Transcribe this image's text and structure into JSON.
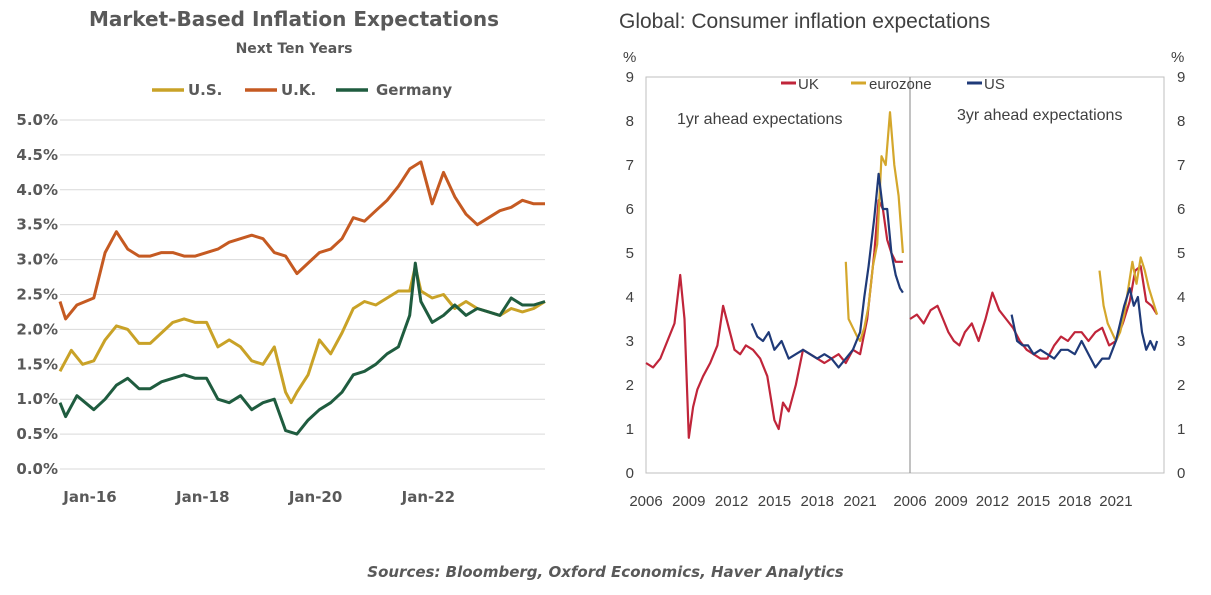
{
  "chart_data": [
    {
      "type": "line",
      "title": "Market-Based  Inflation  Expectations",
      "subtitle": "Next Ten Years",
      "x_tick_labels": [
        "Jan-16",
        "Jan-18",
        "Jan-20",
        "Jan-22"
      ],
      "x_tick_positions": [
        2016.0,
        2018.0,
        2020.0,
        2022.0
      ],
      "xlim": [
        2016.0,
        2024.6
      ],
      "y_tick_labels": [
        "0.0%",
        "0.5%",
        "1.0%",
        "1.5%",
        "2.0%",
        "2.5%",
        "3.0%",
        "3.5%",
        "4.0%",
        "4.5%",
        "5.0%"
      ],
      "ylim": [
        0,
        5
      ],
      "grid": true,
      "legend_position": "top",
      "series": [
        {
          "name": "U.S.",
          "color": "#c9a227",
          "x": [
            2016.0,
            2016.2,
            2016.4,
            2016.6,
            2016.8,
            2017.0,
            2017.2,
            2017.4,
            2017.6,
            2017.8,
            2018.0,
            2018.2,
            2018.4,
            2018.6,
            2018.8,
            2019.0,
            2019.2,
            2019.4,
            2019.6,
            2019.8,
            2020.0,
            2020.1,
            2020.2,
            2020.4,
            2020.6,
            2020.8,
            2021.0,
            2021.2,
            2021.4,
            2021.6,
            2021.8,
            2022.0,
            2022.2,
            2022.3,
            2022.4,
            2022.6,
            2022.8,
            2023.0,
            2023.2,
            2023.4,
            2023.6,
            2023.8,
            2024.0,
            2024.2,
            2024.4,
            2024.6
          ],
          "y": [
            1.4,
            1.7,
            1.5,
            1.55,
            1.85,
            2.05,
            2.0,
            1.8,
            1.8,
            1.95,
            2.1,
            2.15,
            2.1,
            2.1,
            1.75,
            1.85,
            1.75,
            1.55,
            1.5,
            1.75,
            1.1,
            0.95,
            1.1,
            1.35,
            1.85,
            1.65,
            1.95,
            2.3,
            2.4,
            2.35,
            2.45,
            2.55,
            2.55,
            2.9,
            2.55,
            2.45,
            2.5,
            2.3,
            2.4,
            2.3,
            2.25,
            2.2,
            2.3,
            2.25,
            2.3,
            2.4
          ]
        },
        {
          "name": "U.K.",
          "color": "#c55a22",
          "x": [
            2016.0,
            2016.1,
            2016.3,
            2016.6,
            2016.8,
            2017.0,
            2017.2,
            2017.4,
            2017.6,
            2017.8,
            2018.0,
            2018.2,
            2018.4,
            2018.6,
            2018.8,
            2019.0,
            2019.2,
            2019.4,
            2019.6,
            2019.8,
            2020.0,
            2020.2,
            2020.4,
            2020.6,
            2020.8,
            2021.0,
            2021.2,
            2021.4,
            2021.6,
            2021.8,
            2022.0,
            2022.2,
            2022.4,
            2022.6,
            2022.8,
            2023.0,
            2023.2,
            2023.4,
            2023.6,
            2023.8,
            2024.0,
            2024.2,
            2024.4,
            2024.6
          ],
          "y": [
            2.4,
            2.15,
            2.35,
            2.45,
            3.1,
            3.4,
            3.15,
            3.05,
            3.05,
            3.1,
            3.1,
            3.05,
            3.05,
            3.1,
            3.15,
            3.25,
            3.3,
            3.35,
            3.3,
            3.1,
            3.05,
            2.8,
            2.95,
            3.1,
            3.15,
            3.3,
            3.6,
            3.55,
            3.7,
            3.85,
            4.05,
            4.3,
            4.4,
            3.8,
            4.25,
            3.9,
            3.65,
            3.5,
            3.6,
            3.7,
            3.75,
            3.85,
            3.8,
            3.8
          ]
        },
        {
          "name": "Germany",
          "color": "#1f5c3f",
          "x": [
            2016.0,
            2016.1,
            2016.3,
            2016.6,
            2016.8,
            2017.0,
            2017.2,
            2017.4,
            2017.6,
            2017.8,
            2018.0,
            2018.2,
            2018.4,
            2018.6,
            2018.8,
            2019.0,
            2019.2,
            2019.4,
            2019.6,
            2019.8,
            2020.0,
            2020.2,
            2020.4,
            2020.6,
            2020.8,
            2021.0,
            2021.2,
            2021.4,
            2021.6,
            2021.8,
            2022.0,
            2022.2,
            2022.3,
            2022.4,
            2022.6,
            2022.8,
            2023.0,
            2023.2,
            2023.4,
            2023.6,
            2023.8,
            2024.0,
            2024.2,
            2024.4,
            2024.6
          ],
          "y": [
            0.95,
            0.75,
            1.05,
            0.85,
            1.0,
            1.2,
            1.3,
            1.15,
            1.15,
            1.25,
            1.3,
            1.35,
            1.3,
            1.3,
            1.0,
            0.95,
            1.05,
            0.85,
            0.95,
            1.0,
            0.55,
            0.5,
            0.7,
            0.85,
            0.95,
            1.1,
            1.35,
            1.4,
            1.5,
            1.65,
            1.75,
            2.2,
            2.95,
            2.4,
            2.1,
            2.2,
            2.35,
            2.2,
            2.3,
            2.25,
            2.2,
            2.45,
            2.35,
            2.35,
            2.4
          ]
        }
      ]
    },
    {
      "type": "line",
      "title": "Global: Consumer inflation expectations",
      "y_unit_left": "%",
      "y_unit_right": "%",
      "ylim": [
        0,
        9
      ],
      "y_tick_labels": [
        "0",
        "1",
        "2",
        "3",
        "4",
        "5",
        "6",
        "7",
        "8",
        "9"
      ],
      "x_tick_labels": [
        "2006",
        "2009",
        "2012",
        "2015",
        "2018",
        "2021",
        "2006",
        "2009",
        "2012",
        "2015",
        "2018",
        "2021"
      ],
      "legend_position": "top",
      "panels": [
        {
          "annotation": "1yr ahead expectations",
          "xlim": [
            2006,
            2024.5
          ],
          "series": [
            {
              "name": "UK",
              "color": "#c0253a",
              "x": [
                2006,
                2006.5,
                2007,
                2007.5,
                2008,
                2008.4,
                2008.7,
                2009,
                2009.3,
                2009.6,
                2010,
                2010.5,
                2011,
                2011.4,
                2011.8,
                2012.2,
                2012.6,
                2013,
                2013.5,
                2014,
                2014.5,
                2015,
                2015.3,
                2015.6,
                2016,
                2016.5,
                2017,
                2017.5,
                2018,
                2018.5,
                2019,
                2019.5,
                2020,
                2020.5,
                2021,
                2021.5,
                2022,
                2022.3,
                2022.6,
                2022.9,
                2023.2,
                2023.5,
                2024
              ],
              "y": [
                2.5,
                2.4,
                2.6,
                3.0,
                3.4,
                4.5,
                3.5,
                0.8,
                1.5,
                1.9,
                2.2,
                2.5,
                2.9,
                3.8,
                3.3,
                2.8,
                2.7,
                2.9,
                2.8,
                2.6,
                2.2,
                1.2,
                1.0,
                1.6,
                1.4,
                2.0,
                2.8,
                2.7,
                2.6,
                2.5,
                2.6,
                2.7,
                2.5,
                2.8,
                2.7,
                3.5,
                5.0,
                6.2,
                6.0,
                5.3,
                5.0,
                4.8,
                4.8
              ]
            },
            {
              "name": "eurozone",
              "color": "#d4a72c",
              "x": [
                2020.0,
                2020.2,
                2020.5,
                2020.8,
                2021.0,
                2021.3,
                2021.6,
                2021.9,
                2022.2,
                2022.5,
                2022.8,
                2023.1,
                2023.4,
                2023.7,
                2024.0
              ],
              "y": [
                4.8,
                3.5,
                3.3,
                3.1,
                3.0,
                3.3,
                3.8,
                4.7,
                5.2,
                7.2,
                7.0,
                8.2,
                7.0,
                6.3,
                5.0
              ]
            },
            {
              "name": "US",
              "color": "#1f3a78",
              "x": [
                2013.4,
                2013.8,
                2014.2,
                2014.6,
                2015,
                2015.5,
                2016,
                2016.5,
                2017,
                2017.5,
                2018,
                2018.5,
                2019,
                2019.5,
                2020,
                2020.5,
                2021,
                2021.3,
                2021.6,
                2022.0,
                2022.3,
                2022.6,
                2022.9,
                2023.2,
                2023.5,
                2023.8,
                2024.0
              ],
              "y": [
                3.4,
                3.1,
                3.0,
                3.2,
                2.8,
                3.0,
                2.6,
                2.7,
                2.8,
                2.7,
                2.6,
                2.7,
                2.6,
                2.4,
                2.6,
                2.8,
                3.2,
                4.0,
                4.7,
                5.8,
                6.8,
                6.0,
                6.0,
                5.0,
                4.5,
                4.2,
                4.1
              ]
            }
          ]
        },
        {
          "annotation": "3yr ahead expectations",
          "xlim": [
            2006,
            2024.5
          ],
          "series": [
            {
              "name": "UK",
              "color": "#c0253a",
              "x": [
                2006,
                2006.5,
                2007,
                2007.5,
                2008,
                2008.4,
                2008.8,
                2009.2,
                2009.6,
                2010,
                2010.5,
                2011,
                2011.5,
                2012,
                2012.5,
                2013,
                2013.5,
                2014,
                2014.5,
                2015,
                2015.5,
                2016,
                2016.5,
                2017,
                2017.5,
                2018,
                2018.5,
                2019,
                2019.5,
                2020,
                2020.5,
                2021,
                2021.5,
                2022,
                2022.4,
                2022.8,
                2023.2,
                2023.6,
                2024
              ],
              "y": [
                3.5,
                3.6,
                3.4,
                3.7,
                3.8,
                3.5,
                3.2,
                3.0,
                2.9,
                3.2,
                3.4,
                3.0,
                3.5,
                4.1,
                3.7,
                3.5,
                3.3,
                3.0,
                2.8,
                2.7,
                2.6,
                2.6,
                2.9,
                3.1,
                3.0,
                3.2,
                3.2,
                3.0,
                3.2,
                3.3,
                2.9,
                3.0,
                3.4,
                3.9,
                4.6,
                4.7,
                3.9,
                3.8,
                3.6
              ]
            },
            {
              "name": "eurozone",
              "color": "#d4a72c",
              "x": [
                2019.8,
                2020.1,
                2020.4,
                2020.7,
                2021.0,
                2021.3,
                2021.6,
                2021.9,
                2022.2,
                2022.5,
                2022.8,
                2023.1,
                2023.4,
                2023.7,
                2024.0
              ],
              "y": [
                4.6,
                3.8,
                3.4,
                3.2,
                3.0,
                3.2,
                3.6,
                4.2,
                4.8,
                4.3,
                4.9,
                4.6,
                4.2,
                3.9,
                3.6
              ]
            },
            {
              "name": "US",
              "color": "#1f3a78",
              "x": [
                2013.4,
                2013.8,
                2014.2,
                2014.6,
                2015,
                2015.5,
                2016,
                2016.5,
                2017,
                2017.5,
                2018,
                2018.5,
                2019,
                2019.5,
                2020,
                2020.5,
                2021,
                2021.3,
                2021.6,
                2022.0,
                2022.3,
                2022.6,
                2022.9,
                2023.2,
                2023.5,
                2023.8,
                2024.0
              ],
              "y": [
                3.6,
                3.0,
                2.9,
                2.9,
                2.7,
                2.8,
                2.7,
                2.6,
                2.8,
                2.8,
                2.7,
                3.0,
                2.7,
                2.4,
                2.6,
                2.6,
                3.0,
                3.4,
                3.8,
                4.2,
                3.8,
                4.0,
                3.2,
                2.8,
                3.0,
                2.8,
                3.0
              ]
            }
          ]
        }
      ]
    }
  ],
  "source_text": "Sources: Bloomberg, Oxford Economics, Haver Analytics"
}
